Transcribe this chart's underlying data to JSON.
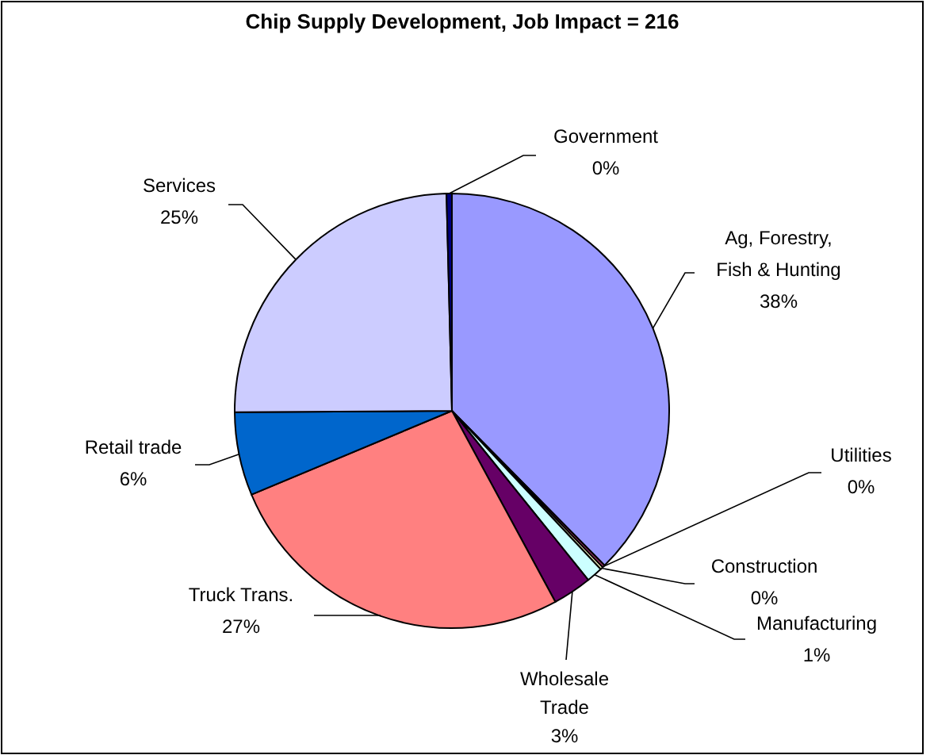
{
  "chart_data": {
    "type": "pie",
    "title": "Chip Supply Development, Job Impact = 216",
    "categories": [
      "Ag, Forestry, Fish & Hunting",
      "Utilities",
      "Construction",
      "Manufacturing",
      "Wholesale Trade",
      "Truck Trans.",
      "Retail trade",
      "Services",
      "Government"
    ],
    "values": [
      37.6,
      0.2,
      0.2,
      1.2,
      2.9,
      26.6,
      6.2,
      24.7,
      0.4
    ],
    "value_labels": [
      "38%",
      "0%",
      "0%",
      "1%",
      "3%",
      "27%",
      "6%",
      "25%",
      "0%"
    ],
    "colors": [
      "#9999ff",
      "#993366",
      "#ffffcc",
      "#ccffff",
      "#660066",
      "#ff8080",
      "#0066cc",
      "#ccccff",
      "#000080"
    ],
    "legend": false
  }
}
